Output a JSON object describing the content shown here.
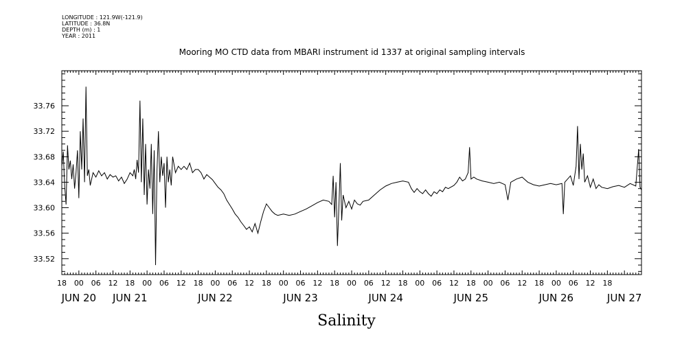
{
  "header": {
    "longitude": "LONGITUDE : 121.9W(-121.9)",
    "latitude": "LATITUDE : 36.8N",
    "depth": "DEPTH (m) : 1",
    "year": "YEAR : 2011"
  },
  "chart_data": {
    "type": "line",
    "title": "Mooring MO CTD data from MBARI instrument id 1337 at original sampling intervals",
    "xlabel": "Salinity",
    "ylabel": "",
    "xlim": [
      -6,
      198
    ],
    "ylim": [
      33.495,
      33.815
    ],
    "yticks": [
      33.52,
      33.56,
      33.6,
      33.64,
      33.68,
      33.72,
      33.76
    ],
    "ytick_labels": [
      "33.52",
      "33.56",
      "33.60",
      "33.64",
      "33.68",
      "33.72",
      "33.76"
    ],
    "hour_ticks": [
      "18",
      "00",
      "06",
      "12",
      "18",
      "00",
      "06",
      "12",
      "18",
      "00",
      "06",
      "12",
      "18",
      "00",
      "06",
      "12",
      "18",
      "00",
      "06",
      "12",
      "18",
      "00",
      "06",
      "12",
      "18",
      "00",
      "06",
      "12",
      "18",
      "00",
      "06",
      "12",
      "18"
    ],
    "day_labels": [
      {
        "label": "JUN 20",
        "x": 0
      },
      {
        "label": "JUN 21",
        "x": 18
      },
      {
        "label": "JUN 22",
        "x": 48
      },
      {
        "label": "JUN 23",
        "x": 78
      },
      {
        "label": "JUN 24",
        "x": 108
      },
      {
        "label": "JUN 25",
        "x": 138
      },
      {
        "label": "JUN 26",
        "x": 168
      },
      {
        "label": "JUN 27",
        "x": 192
      }
    ],
    "x_unit": "hours from JUN 20 00:00 (2011)",
    "grid": false,
    "series": [
      {
        "values": [
          [
            -6,
            33.665
          ],
          [
            -5.5,
            33.688
          ],
          [
            -5,
            33.635
          ],
          [
            -4.5,
            33.605
          ],
          [
            -4,
            33.698
          ],
          [
            -3.5,
            33.66
          ],
          [
            -3,
            33.674
          ],
          [
            -2.5,
            33.645
          ],
          [
            -2,
            33.668
          ],
          [
            -1.5,
            33.63
          ],
          [
            -1,
            33.655
          ],
          [
            -0.5,
            33.69
          ],
          [
            0,
            33.615
          ],
          [
            0.5,
            33.72
          ],
          [
            1,
            33.66
          ],
          [
            1.5,
            33.74
          ],
          [
            2,
            33.64
          ],
          [
            2.5,
            33.79
          ],
          [
            3,
            33.65
          ],
          [
            3.5,
            33.66
          ],
          [
            4,
            33.635
          ],
          [
            5,
            33.655
          ],
          [
            6,
            33.648
          ],
          [
            7,
            33.658
          ],
          [
            8,
            33.65
          ],
          [
            9,
            33.655
          ],
          [
            10,
            33.645
          ],
          [
            11,
            33.652
          ],
          [
            12,
            33.648
          ],
          [
            13,
            33.65
          ],
          [
            14,
            33.642
          ],
          [
            15,
            33.648
          ],
          [
            16,
            33.638
          ],
          [
            17,
            33.645
          ],
          [
            18,
            33.655
          ],
          [
            19,
            33.65
          ],
          [
            19.5,
            33.66
          ],
          [
            20,
            33.645
          ],
          [
            20.5,
            33.675
          ],
          [
            21,
            33.655
          ],
          [
            21.5,
            33.768
          ],
          [
            22,
            33.64
          ],
          [
            22.5,
            33.74
          ],
          [
            23,
            33.62
          ],
          [
            23.5,
            33.7
          ],
          [
            24,
            33.605
          ],
          [
            24.5,
            33.66
          ],
          [
            25,
            33.63
          ],
          [
            25.5,
            33.7
          ],
          [
            26,
            33.59
          ],
          [
            26.5,
            33.69
          ],
          [
            27,
            33.51
          ],
          [
            27.5,
            33.66
          ],
          [
            28,
            33.72
          ],
          [
            28.5,
            33.64
          ],
          [
            29,
            33.68
          ],
          [
            29.5,
            33.65
          ],
          [
            30,
            33.67
          ],
          [
            30.5,
            33.6
          ],
          [
            31,
            33.68
          ],
          [
            31.5,
            33.64
          ],
          [
            32,
            33.66
          ],
          [
            32.5,
            33.635
          ],
          [
            33,
            33.68
          ],
          [
            34,
            33.655
          ],
          [
            35,
            33.665
          ],
          [
            36,
            33.66
          ],
          [
            37,
            33.665
          ],
          [
            38,
            33.66
          ],
          [
            39,
            33.67
          ],
          [
            40,
            33.655
          ],
          [
            41,
            33.66
          ],
          [
            42,
            33.66
          ],
          [
            43,
            33.655
          ],
          [
            44,
            33.645
          ],
          [
            45,
            33.652
          ],
          [
            46,
            33.648
          ],
          [
            47,
            33.644
          ],
          [
            48,
            33.638
          ],
          [
            49,
            33.632
          ],
          [
            50,
            33.628
          ],
          [
            51,
            33.622
          ],
          [
            52,
            33.612
          ],
          [
            53,
            33.605
          ],
          [
            54,
            33.598
          ],
          [
            55,
            33.59
          ],
          [
            56,
            33.585
          ],
          [
            57,
            33.578
          ],
          [
            58,
            33.572
          ],
          [
            59,
            33.566
          ],
          [
            60,
            33.57
          ],
          [
            61,
            33.562
          ],
          [
            62,
            33.575
          ],
          [
            63,
            33.56
          ],
          [
            64,
            33.578
          ],
          [
            65,
            33.594
          ],
          [
            66,
            33.606
          ],
          [
            67,
            33.6
          ],
          [
            68,
            33.594
          ],
          [
            69,
            33.59
          ],
          [
            70,
            33.588
          ],
          [
            72,
            33.59
          ],
          [
            74,
            33.588
          ],
          [
            76,
            33.59
          ],
          [
            78,
            33.594
          ],
          [
            80,
            33.598
          ],
          [
            82,
            33.603
          ],
          [
            84,
            33.608
          ],
          [
            86,
            33.612
          ],
          [
            88,
            33.61
          ],
          [
            89,
            33.605
          ],
          [
            89.5,
            33.65
          ],
          [
            90,
            33.585
          ],
          [
            90.5,
            33.64
          ],
          [
            91,
            33.54
          ],
          [
            91.5,
            33.6
          ],
          [
            92,
            33.67
          ],
          [
            92.5,
            33.58
          ],
          [
            93,
            33.62
          ],
          [
            94,
            33.6
          ],
          [
            95,
            33.61
          ],
          [
            96,
            33.598
          ],
          [
            97,
            33.612
          ],
          [
            98,
            33.606
          ],
          [
            99,
            33.604
          ],
          [
            100,
            33.61
          ],
          [
            102,
            33.612
          ],
          [
            104,
            33.62
          ],
          [
            106,
            33.628
          ],
          [
            108,
            33.634
          ],
          [
            110,
            33.638
          ],
          [
            112,
            33.64
          ],
          [
            114,
            33.642
          ],
          [
            116,
            33.64
          ],
          [
            117,
            33.63
          ],
          [
            118,
            33.624
          ],
          [
            119,
            33.63
          ],
          [
            120,
            33.625
          ],
          [
            121,
            33.622
          ],
          [
            122,
            33.628
          ],
          [
            123,
            33.622
          ],
          [
            124,
            33.618
          ],
          [
            125,
            33.625
          ],
          [
            126,
            33.622
          ],
          [
            127,
            33.628
          ],
          [
            128,
            33.625
          ],
          [
            129,
            33.632
          ],
          [
            130,
            33.63
          ],
          [
            132,
            33.635
          ],
          [
            133,
            33.64
          ],
          [
            134,
            33.648
          ],
          [
            135,
            33.642
          ],
          [
            136,
            33.645
          ],
          [
            137,
            33.655
          ],
          [
            137.5,
            33.695
          ],
          [
            138,
            33.645
          ],
          [
            139,
            33.648
          ],
          [
            140,
            33.645
          ],
          [
            142,
            33.642
          ],
          [
            144,
            33.64
          ],
          [
            146,
            33.638
          ],
          [
            148,
            33.64
          ],
          [
            150,
            33.636
          ],
          [
            151,
            33.612
          ],
          [
            152,
            33.64
          ],
          [
            154,
            33.645
          ],
          [
            156,
            33.648
          ],
          [
            158,
            33.64
          ],
          [
            160,
            33.636
          ],
          [
            162,
            33.634
          ],
          [
            164,
            33.636
          ],
          [
            166,
            33.638
          ],
          [
            168,
            33.636
          ],
          [
            170,
            33.638
          ],
          [
            170.5,
            33.59
          ],
          [
            171,
            33.64
          ],
          [
            173,
            33.65
          ],
          [
            174,
            33.635
          ],
          [
            175,
            33.665
          ],
          [
            175.5,
            33.728
          ],
          [
            176,
            33.645
          ],
          [
            176.5,
            33.7
          ],
          [
            177,
            33.66
          ],
          [
            177.5,
            33.685
          ],
          [
            178,
            33.64
          ],
          [
            179,
            33.65
          ],
          [
            180,
            33.632
          ],
          [
            181,
            33.645
          ],
          [
            182,
            33.63
          ],
          [
            183,
            33.636
          ],
          [
            184,
            33.632
          ],
          [
            186,
            33.63
          ],
          [
            188,
            33.633
          ],
          [
            190,
            33.635
          ],
          [
            192,
            33.632
          ],
          [
            194,
            33.638
          ],
          [
            196,
            33.634
          ],
          [
            197,
            33.692
          ],
          [
            197.5,
            33.632
          ],
          [
            198,
            33.628
          ]
        ]
      }
    ]
  }
}
